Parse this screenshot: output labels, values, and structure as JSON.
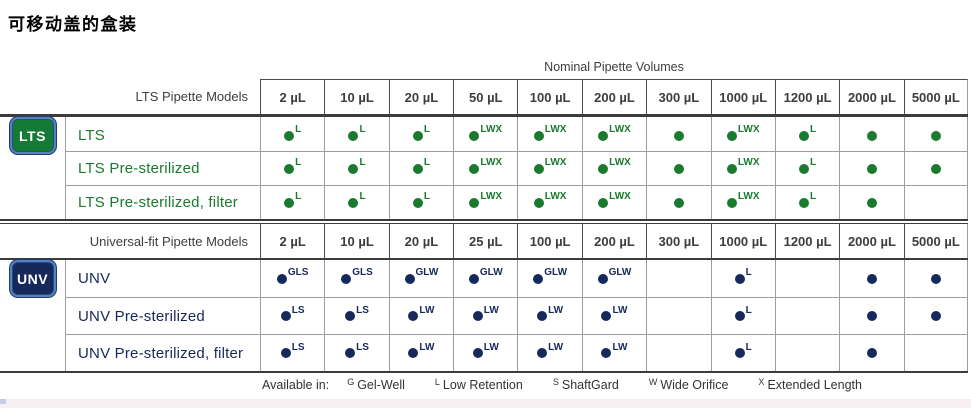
{
  "title": "可移动盖的盒装",
  "colors": {
    "lts_green": "#1a7a2f",
    "unv_navy": "#16295a",
    "rule_dark": "#3c3c3c",
    "rule_light": "#9c9c9c",
    "badge_border_blue": "#5584bb"
  },
  "table": {
    "nominal_label": "Nominal Pipette Volumes",
    "lts": {
      "models_label": "LTS Pipette Models",
      "badge": "LTS",
      "volumes": [
        "2 µL",
        "10 µL",
        "20 µL",
        "50 µL",
        "100 µL",
        "200 µL",
        "300 µL",
        "1000 µL",
        "1200 µL",
        "2000 µL",
        "5000 µL"
      ],
      "rows": [
        {
          "label": "LTS",
          "cells": [
            "L",
            "L",
            "L",
            "LWX",
            "LWX",
            "LWX",
            "",
            "LWX",
            "L",
            "",
            ""
          ]
        },
        {
          "label": "LTS Pre-sterilized",
          "cells": [
            "L",
            "L",
            "L",
            "LWX",
            "LWX",
            "LWX",
            "",
            "LWX",
            "L",
            "",
            ""
          ]
        },
        {
          "label": "LTS Pre-sterilized, filter",
          "cells": [
            "L",
            "L",
            "L",
            "LWX",
            "LWX",
            "LWX",
            "",
            "LWX",
            "L",
            "",
            null
          ]
        }
      ]
    },
    "unv": {
      "models_label": "Universal-fit Pipette Models",
      "badge": "UNV",
      "volumes": [
        "2 µL",
        "10 µL",
        "20 µL",
        "25 µL",
        "100 µL",
        "200 µL",
        "300 µL",
        "1000 µL",
        "1200 µL",
        "2000 µL",
        "5000 µL"
      ],
      "rows": [
        {
          "label": "UNV",
          "cells": [
            "GLS",
            "GLS",
            "GLW",
            "GLW",
            "GLW",
            "GLW",
            null,
            "L",
            null,
            "",
            ""
          ]
        },
        {
          "label": "UNV Pre-sterilized",
          "cells": [
            "LS",
            "LS",
            "LW",
            "LW",
            "LW",
            "LW",
            null,
            "L",
            null,
            "",
            ""
          ]
        },
        {
          "label": "UNV Pre-sterilized, filter",
          "cells": [
            "LS",
            "LS",
            "LW",
            "LW",
            "LW",
            "LW",
            null,
            "L",
            null,
            "",
            null
          ]
        }
      ]
    },
    "legend": {
      "prefix": "Available in:",
      "items": [
        {
          "sup": "G",
          "label": "Gel-Well"
        },
        {
          "sup": "L",
          "label": "Low Retention"
        },
        {
          "sup": "S",
          "label": "ShaftGard"
        },
        {
          "sup": "W",
          "label": "Wide Orifice"
        },
        {
          "sup": "X",
          "label": "Extended Length"
        }
      ]
    }
  }
}
